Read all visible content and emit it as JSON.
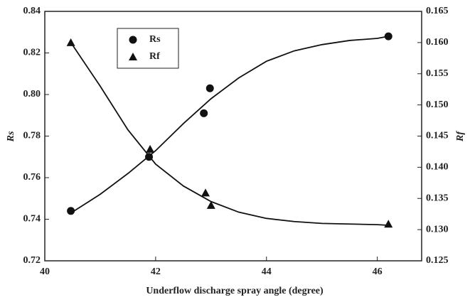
{
  "chart_data": {
    "type": "scatter",
    "x_label": "Underflow discharge spray angle (degree)",
    "y_label": "Rs",
    "y2_label": "Rf",
    "xlim": [
      40,
      46.8
    ],
    "xticks": [
      40,
      42,
      44,
      46
    ],
    "ylim": [
      0.72,
      0.84
    ],
    "yticks": [
      0.72,
      0.74,
      0.76,
      0.78,
      {
        "value": 0.8,
        "label": "0.80"
      },
      0.82,
      0.84
    ],
    "y2lim": [
      0.125,
      0.165
    ],
    "y2ticks": [
      0.125,
      {
        "value": 0.13,
        "label": "0.130"
      },
      0.135,
      {
        "value": 0.14,
        "label": "0.140"
      },
      0.145,
      {
        "value": 0.15,
        "label": "0.150"
      },
      0.155,
      {
        "value": 0.16,
        "label": "0.160"
      },
      0.165
    ],
    "legend": "upper left",
    "series": [
      {
        "name": "Rs",
        "color": "#111111",
        "marker": "circle",
        "axis": "y",
        "x": [
          40.47,
          41.88,
          42.87,
          42.98,
          46.2
        ],
        "values": [
          0.744,
          0.77,
          0.791,
          0.803,
          0.828
        ],
        "fit_x": [
          40.47,
          41,
          41.5,
          42,
          42.5,
          43,
          43.5,
          44,
          44.5,
          45,
          45.5,
          46,
          46.2
        ],
        "fit_values": [
          0.743,
          0.752,
          0.762,
          0.773,
          0.786,
          0.798,
          0.808,
          0.816,
          0.821,
          0.824,
          0.826,
          0.827,
          0.828
        ]
      },
      {
        "name": "Rf",
        "color": "#111111",
        "marker": "triangle",
        "axis": "y2",
        "x": [
          40.47,
          41.9,
          42.9,
          43.0,
          46.2
        ],
        "values": [
          0.16,
          0.1429,
          0.1359,
          0.1339,
          0.1309
        ],
        "fit_x": [
          40.47,
          41,
          41.5,
          42,
          42.5,
          43,
          43.5,
          44,
          44.5,
          45,
          46,
          46.2
        ],
        "fit_values": [
          0.16,
          0.153,
          0.146,
          0.1405,
          0.137,
          0.1345,
          0.1328,
          0.1318,
          0.1313,
          0.131,
          0.1308,
          0.1307
        ]
      }
    ]
  }
}
